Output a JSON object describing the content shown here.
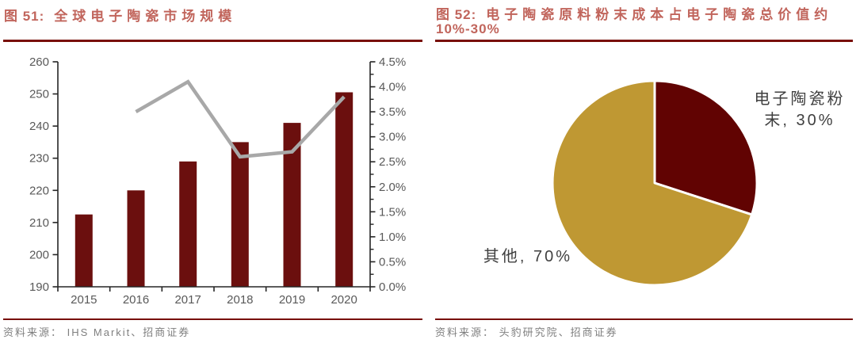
{
  "colors": {
    "title": "#c1655c",
    "rule": "#780f08",
    "source": "#7f7f7f",
    "axis_text": "#595959",
    "axis_line": "#262626",
    "bar": "#6b0f0e",
    "growth_line": "#a8a8a8",
    "pie_powder": "#610302",
    "pie_other": "#bf9833",
    "pie_label": "#3f3f3f",
    "background": "#ffffff"
  },
  "left_panel": {
    "fig_label": "图 51:",
    "title": "全球电子陶瓷市场规模",
    "source": "资料来源： IHS Markit、招商证券"
  },
  "right_panel": {
    "fig_label": "图 52:",
    "title_line1": "电子陶瓷原料粉末成本占电子陶瓷总价值约",
    "title_line2": "10%-30%",
    "source": "资料来源： 头豹研究院、招商证券"
  },
  "chart_data": [
    {
      "type": "bar",
      "subtype": "bar-line-combo",
      "title": "全球电子陶瓷市场规模",
      "categories": [
        "2015",
        "2016",
        "2017",
        "2018",
        "2019",
        "2020"
      ],
      "series": [
        {
          "name": "market-size-bars",
          "type": "bar",
          "axis": "left",
          "values": [
            212.5,
            220,
            229,
            235,
            241,
            250.5
          ]
        },
        {
          "name": "yoy-growth-line",
          "type": "line",
          "axis": "right",
          "values": [
            null,
            3.5,
            4.1,
            2.6,
            2.7,
            3.8
          ]
        }
      ],
      "left_axis": {
        "min": 190,
        "max": 260,
        "ticks": [
          "190",
          "200",
          "210",
          "220",
          "230",
          "240",
          "250",
          "260"
        ]
      },
      "right_axis": {
        "min": 0,
        "max": 4.5,
        "minor_per_interval": 1,
        "ticks": [
          "0.0%",
          "0.5%",
          "1.0%",
          "1.5%",
          "2.0%",
          "2.5%",
          "3.0%",
          "3.5%",
          "4.0%",
          "4.5%"
        ]
      },
      "legend": "none",
      "grid": false
    },
    {
      "type": "pie",
      "start_angle_deg": 0,
      "direction": "clockwise",
      "slices": [
        {
          "label": "电子陶瓷粉末",
          "pct": 30,
          "color_key": "pie_powder",
          "display_lines": [
            "电子陶瓷粉",
            "末, 30%"
          ]
        },
        {
          "label": "其他",
          "pct": 70,
          "color_key": "pie_other",
          "display_lines": [
            "其他, 70%"
          ]
        }
      ]
    }
  ]
}
